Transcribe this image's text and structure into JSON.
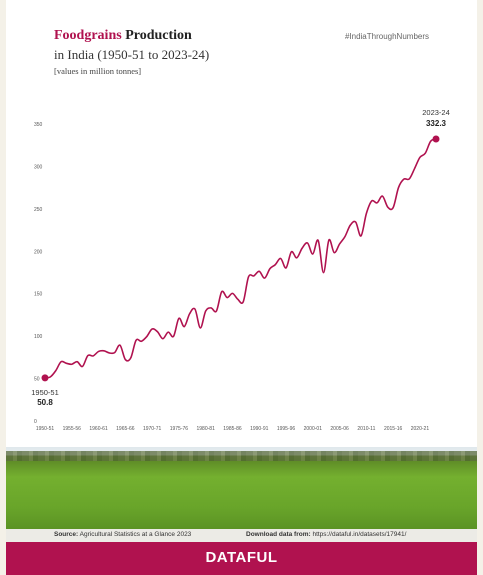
{
  "header": {
    "title_accent": "Foodgrains",
    "title_rest": "Production",
    "title_line2": "in India (1950-51 to 2023-24)",
    "subtitle": "[values in million tonnes]",
    "hashtag": "#IndiaThroughNumbers"
  },
  "footer": {
    "source_label": "Source:",
    "source_text": "Agricultural Statistics at a Glance 2023",
    "download_label": "Download data from:",
    "download_url": "https://dataful.in/datasets/17941/",
    "brand": "DATAFUL"
  },
  "colors": {
    "accent": "#b0124f",
    "text": "#333333"
  },
  "chart_data": {
    "type": "line",
    "title": "Foodgrains Production in India (1950-51 to 2023-24)",
    "ylabel": "",
    "xlabel": "",
    "ylim": [
      0,
      350
    ],
    "yticks": [
      0,
      50,
      100,
      150,
      200,
      250,
      300,
      350
    ],
    "xticks": [
      "1950-51",
      "1955-56",
      "1960-61",
      "1965-66",
      "1970-71",
      "1975-76",
      "1980-81",
      "1985-86",
      "1990-91",
      "1995-96",
      "2000-01",
      "2005-06",
      "2010-11",
      "2015-16",
      "2020-21"
    ],
    "grid": false,
    "annotations": [
      {
        "year_label": "1950-51",
        "value_label": "50.8"
      },
      {
        "year_label": "2023-24",
        "value_label": "332.3"
      }
    ],
    "series": [
      {
        "color": "#b0124f",
        "x": [
          "1950-51",
          "1951-52",
          "1952-53",
          "1953-54",
          "1954-55",
          "1955-56",
          "1956-57",
          "1957-58",
          "1958-59",
          "1959-60",
          "1960-61",
          "1961-62",
          "1962-63",
          "1963-64",
          "1964-65",
          "1965-66",
          "1966-67",
          "1967-68",
          "1968-69",
          "1969-70",
          "1970-71",
          "1971-72",
          "1972-73",
          "1973-74",
          "1974-75",
          "1975-76",
          "1976-77",
          "1977-78",
          "1978-79",
          "1979-80",
          "1980-81",
          "1981-82",
          "1982-83",
          "1983-84",
          "1984-85",
          "1985-86",
          "1986-87",
          "1987-88",
          "1988-89",
          "1989-90",
          "1990-91",
          "1991-92",
          "1992-93",
          "1993-94",
          "1994-95",
          "1995-96",
          "1996-97",
          "1997-98",
          "1998-99",
          "1999-00",
          "2000-01",
          "2001-02",
          "2002-03",
          "2003-04",
          "2004-05",
          "2005-06",
          "2006-07",
          "2007-08",
          "2008-09",
          "2009-10",
          "2010-11",
          "2011-12",
          "2012-13",
          "2013-14",
          "2014-15",
          "2015-16",
          "2016-17",
          "2017-18",
          "2018-19",
          "2019-20",
          "2020-21",
          "2021-22",
          "2022-23",
          "2023-24"
        ],
        "values": [
          50.8,
          52.0,
          59.2,
          69.8,
          68.0,
          66.9,
          69.9,
          64.3,
          77.1,
          76.7,
          82.0,
          82.7,
          80.2,
          80.6,
          89.4,
          72.4,
          74.2,
          95.1,
          94.0,
          99.5,
          108.4,
          105.2,
          97.0,
          104.7,
          99.8,
          121.0,
          111.2,
          126.4,
          131.9,
          109.7,
          129.6,
          133.3,
          129.5,
          152.4,
          145.5,
          150.4,
          143.4,
          140.4,
          169.9,
          171.0,
          176.4,
          168.4,
          179.5,
          184.3,
          191.5,
          180.4,
          199.4,
          192.3,
          203.6,
          209.8,
          196.8,
          212.9,
          174.8,
          213.2,
          198.4,
          208.6,
          217.3,
          230.8,
          234.5,
          218.1,
          244.5,
          259.3,
          257.1,
          265.0,
          252.0,
          251.5,
          275.1,
          285.0,
          285.2,
          297.5,
          310.7,
          315.6,
          329.7,
          332.3
        ]
      }
    ]
  }
}
